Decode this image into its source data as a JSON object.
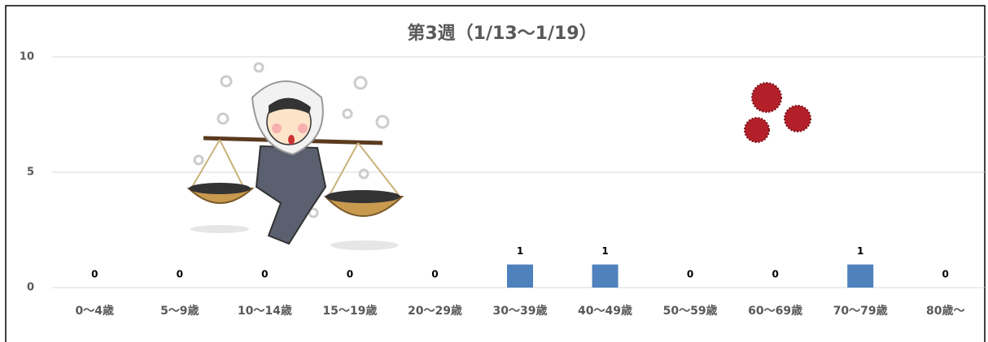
{
  "chart_data": {
    "type": "bar",
    "title": "第3週（1/13～1/19）",
    "categories": [
      "0～4歳",
      "5～9歳",
      "10～14歳",
      "15～19歳",
      "20～29歳",
      "30～39歳",
      "40～49歳",
      "50～59歳",
      "60～69歳",
      "70～79歳",
      "80歳～"
    ],
    "values": [
      0,
      0,
      0,
      0,
      0,
      1,
      1,
      0,
      0,
      1,
      0
    ],
    "color": "#4f81bd",
    "ylim": [
      0,
      10
    ],
    "yticks": [
      0,
      5,
      10
    ],
    "grid": true
  }
}
